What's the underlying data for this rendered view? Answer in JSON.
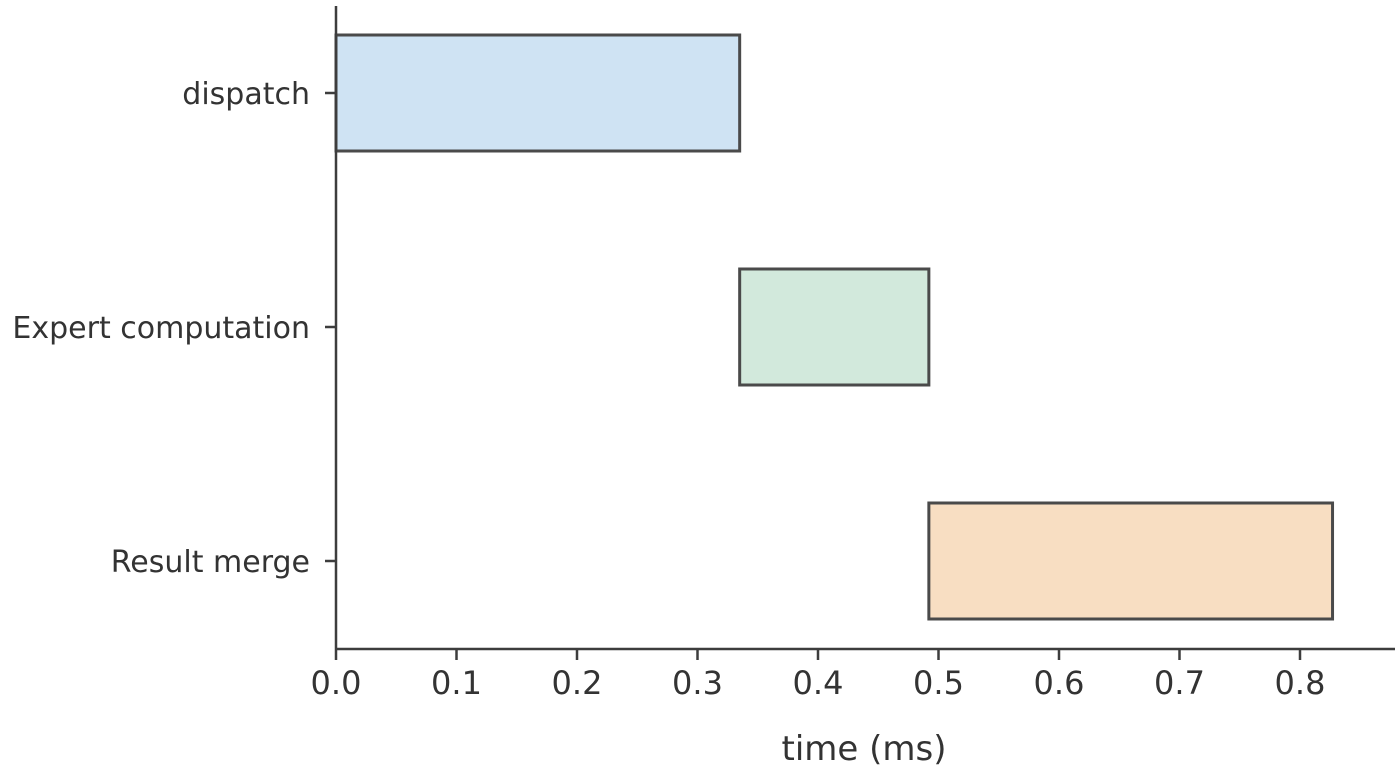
{
  "chart_data": {
    "type": "bar",
    "orientation": "horizontal",
    "style": "gantt",
    "title": "",
    "xlabel": "time (ms)",
    "ylabel": "",
    "xlim": [
      0,
      0.88
    ],
    "xticks": [
      "0.0",
      "0.1",
      "0.2",
      "0.3",
      "0.4",
      "0.5",
      "0.6",
      "0.7",
      "0.8"
    ],
    "grid": false,
    "legend": "none",
    "categories": [
      "dispatch",
      "Expert computation",
      "Result merge"
    ],
    "series": [
      {
        "values": [
          {
            "start": 0.0,
            "end": 0.335
          },
          {
            "start": 0.335,
            "end": 0.492
          },
          {
            "start": 0.492,
            "end": 0.827
          }
        ]
      }
    ],
    "colors": [
      "#cfe3f3",
      "#d2e9dc",
      "#f8dec2"
    ],
    "edge_color": "#4a4a4a"
  }
}
